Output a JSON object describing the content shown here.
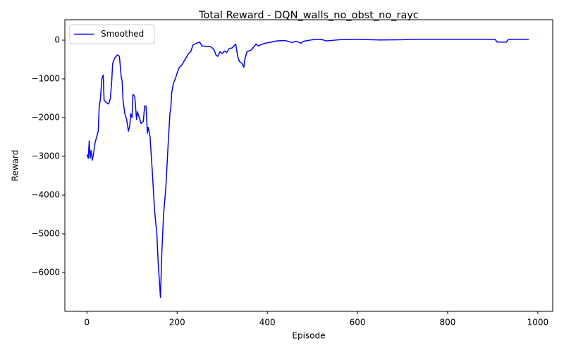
{
  "chart_data": {
    "type": "line",
    "title": "Total Reward - DQN_walls_no_obst_no_rayc",
    "x_label": "Episode",
    "y_label": "Reward",
    "legend": "upper left",
    "xlim": [
      -49,
      1033
    ],
    "ylim": [
      -7000,
      527
    ],
    "xticks": [
      0,
      200,
      400,
      600,
      800,
      1000
    ],
    "yticks": [
      {
        "value": -6000,
        "label": "−6000"
      },
      {
        "value": -5000,
        "label": "−5000"
      },
      {
        "value": -4000,
        "label": "−4000"
      },
      {
        "value": -3000,
        "label": "−3000"
      },
      {
        "value": -2000,
        "label": "−2000"
      },
      {
        "value": -1000,
        "label": "−1000"
      },
      0
    ],
    "x": [
      0,
      3,
      5,
      7,
      9,
      12,
      15,
      18,
      25,
      27,
      30,
      33,
      36,
      38,
      42,
      48,
      52,
      55,
      57,
      62,
      68,
      72,
      76,
      78,
      80,
      84,
      88,
      92,
      95,
      97,
      100,
      102,
      106,
      110,
      112,
      116,
      120,
      125,
      128,
      131,
      134,
      136,
      140,
      145,
      150,
      155,
      158,
      160,
      163,
      166,
      170,
      175,
      180,
      184,
      186,
      188,
      192,
      196,
      200,
      205,
      210,
      215,
      220,
      225,
      230,
      235,
      240,
      245,
      250,
      255,
      265,
      275,
      282,
      286,
      290,
      295,
      300,
      305,
      310,
      315,
      322,
      330,
      334,
      338,
      344,
      348,
      350,
      355,
      365,
      375,
      380,
      390,
      395,
      400,
      410,
      420,
      440,
      455,
      465,
      475,
      480,
      500,
      520,
      530,
      560,
      600,
      650,
      700,
      720,
      800,
      850,
      905,
      910,
      930,
      935,
      980
    ],
    "series": [
      {
        "name": "Smoothed",
        "color": "#0000ff",
        "values": [
          -2950,
          -3050,
          -2600,
          -3050,
          -2850,
          -3100,
          -2900,
          -2650,
          -2350,
          -1750,
          -1500,
          -1000,
          -900,
          -1550,
          -1600,
          -1650,
          -1500,
          -1050,
          -600,
          -450,
          -380,
          -420,
          -950,
          -1050,
          -1550,
          -1900,
          -2050,
          -2350,
          -2200,
          -1900,
          -2000,
          -1400,
          -1450,
          -2050,
          -1850,
          -2000,
          -2150,
          -2100,
          -1700,
          -1700,
          -2400,
          -2250,
          -2500,
          -3400,
          -4400,
          -5000,
          -5750,
          -6100,
          -6640,
          -5500,
          -4500,
          -3800,
          -2700,
          -1900,
          -1750,
          -1350,
          -1100,
          -1000,
          -850,
          -700,
          -650,
          -550,
          -450,
          -350,
          -300,
          -130,
          -100,
          -70,
          -50,
          -150,
          -160,
          -170,
          -250,
          -380,
          -420,
          -300,
          -350,
          -280,
          -320,
          -220,
          -200,
          -100,
          -400,
          -550,
          -600,
          -700,
          -500,
          -300,
          -250,
          -100,
          -150,
          -100,
          -80,
          -70,
          -50,
          -20,
          -10,
          -60,
          -30,
          -80,
          -30,
          10,
          20,
          -20,
          10,
          20,
          5,
          10,
          20,
          20,
          20,
          20,
          -50,
          -50,
          20,
          20
        ]
      }
    ]
  }
}
